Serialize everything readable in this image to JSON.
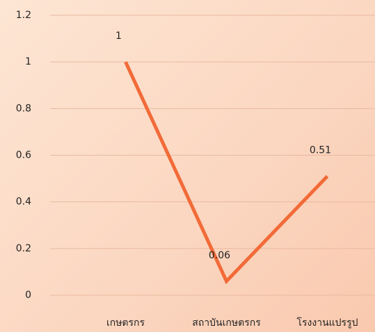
{
  "chart_data": {
    "type": "line",
    "categories": [
      "เกษตรกร",
      "สถาบันเกษตรกร",
      "โรงงานแปรรูป"
    ],
    "series": [
      {
        "name": null,
        "color": "#f26b38",
        "values": [
          1,
          0.06,
          0.51
        ]
      }
    ],
    "ylim": [
      0,
      1.2
    ],
    "yticks": [
      0,
      0.2,
      0.4,
      0.6,
      0.8,
      1,
      1.2
    ],
    "grid": true
  }
}
